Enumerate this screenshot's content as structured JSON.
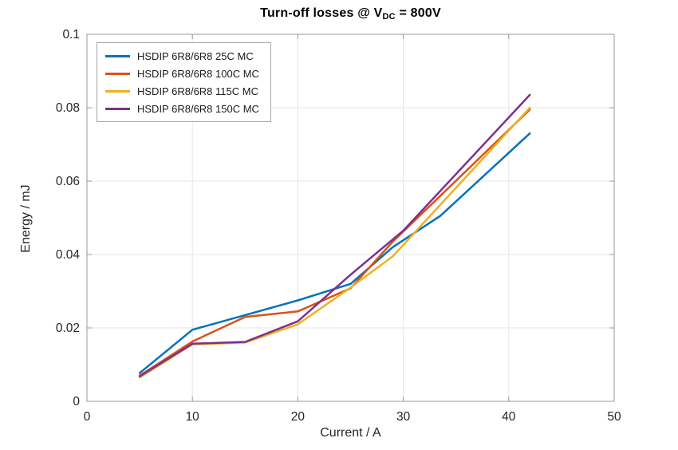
{
  "figure": {
    "title_prefix": "Turn-off losses @ V",
    "title_sub": "DC",
    "title_suffix": " = 800V"
  },
  "chart_data": {
    "type": "line",
    "title": "Turn-off losses @ V_DC = 800V",
    "xlabel": "Current / A",
    "ylabel": "Energy / mJ",
    "xlim": [
      0,
      50
    ],
    "ylim": [
      0,
      0.1
    ],
    "xticks": [
      0,
      10,
      20,
      30,
      40,
      50
    ],
    "xtick_labels": [
      "0",
      "10",
      "20",
      "30",
      "40",
      "50"
    ],
    "yticks": [
      0,
      0.02,
      0.04,
      0.06,
      0.08,
      0.1
    ],
    "ytick_labels": [
      "0",
      "0.02",
      "0.04",
      "0.06",
      "0.08",
      "0.1"
    ],
    "grid": true,
    "legend_position": "top-left",
    "axis_color": "#999999",
    "grid_color": "#e6e6e6",
    "tick_label_color": "#262626",
    "series": [
      {
        "name": "HSDIP 6R8/6R8 25C MC",
        "color": "#0072BD",
        "x": [
          5,
          10,
          15,
          20,
          25,
          29,
          33.5,
          42
        ],
        "y": [
          0.0077,
          0.0195,
          0.0235,
          0.0275,
          0.032,
          0.042,
          0.0505,
          0.073
        ]
      },
      {
        "name": "HSDIP 6R8/6R8 100C MC",
        "color": "#D95319",
        "x": [
          5,
          10,
          15,
          20,
          25,
          29,
          42
        ],
        "y": [
          0.007,
          0.0163,
          0.023,
          0.0245,
          0.0308,
          0.0435,
          0.0795
        ]
      },
      {
        "name": "HSDIP 6R8/6R8 115C MC",
        "color": "#EDB120",
        "x": [
          5,
          10,
          15,
          20,
          25,
          29,
          42
        ],
        "y": [
          0.0065,
          0.0155,
          0.016,
          0.021,
          0.031,
          0.0395,
          0.08
        ]
      },
      {
        "name": "HSDIP 6R8/6R8 150C MC",
        "color": "#7E2F8E",
        "x": [
          5,
          10,
          15,
          20,
          25,
          30,
          42
        ],
        "y": [
          0.0068,
          0.0157,
          0.0162,
          0.0218,
          0.0345,
          0.0465,
          0.0835
        ]
      }
    ]
  }
}
